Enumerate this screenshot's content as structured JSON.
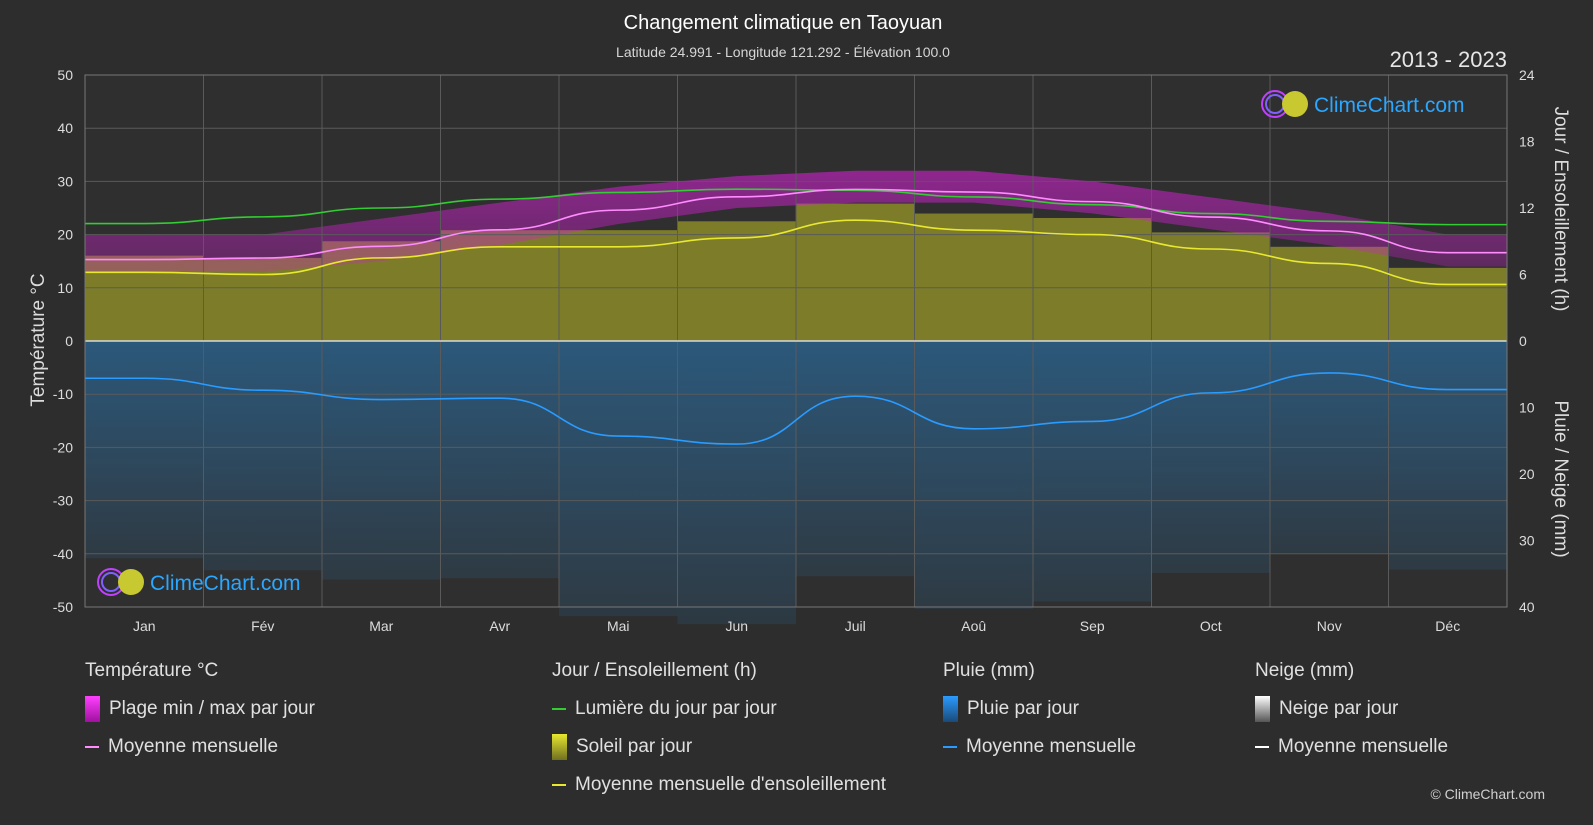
{
  "header": {
    "title": "Changement climatique en Taoyuan",
    "subtitle": "Latitude 24.991 - Longitude 121.292 - Élévation 100.0",
    "years": "2013 - 2023"
  },
  "brand": {
    "logo_text": "ClimeChart.com",
    "copyright": "© ClimeChart.com"
  },
  "colors": {
    "background": "#2d2d2d",
    "temp_range": "#d020d0",
    "temp_mean": "#ff8cff",
    "daylight": "#33cc33",
    "sunshine": "#b8b830",
    "sunshine_mean": "#e8e830",
    "rain": "#2a7ab8",
    "rain_mean": "#2a9bff",
    "snow_mean": "#ffffff",
    "logo": "#2aa7ff"
  },
  "chart_data": {
    "type": "area",
    "x_categories": [
      "Jan",
      "Fév",
      "Mar",
      "Avr",
      "Mai",
      "Jun",
      "Juil",
      "Aoû",
      "Sep",
      "Oct",
      "Nov",
      "Déc"
    ],
    "axes": {
      "left": {
        "label": "Température °C",
        "range": [
          -50,
          50
        ],
        "ticks": [
          50,
          40,
          30,
          20,
          10,
          0,
          -10,
          -20,
          -30,
          -40,
          -50
        ]
      },
      "right_top": {
        "label": "Jour / Ensoleillement (h)",
        "range": [
          0,
          24
        ],
        "ticks": [
          24,
          18,
          12,
          6,
          0
        ]
      },
      "right_bottom": {
        "label": "Pluie / Neige (mm)",
        "range": [
          0,
          40
        ],
        "ticks": [
          0,
          10,
          20,
          30,
          40
        ]
      }
    },
    "grid": true,
    "series": [
      {
        "name": "Plage min / max par jour",
        "axis": "left",
        "min": [
          13,
          13,
          15,
          18,
          22,
          25,
          26,
          26,
          24,
          21,
          18,
          14
        ],
        "max": [
          20,
          20,
          23,
          26,
          29,
          31,
          32,
          32,
          30,
          27,
          24,
          20
        ]
      },
      {
        "name": "Moyenne mensuelle",
        "group": "Température °C",
        "axis": "left",
        "values": [
          15.3,
          15.6,
          17.8,
          20.9,
          24.6,
          27.1,
          28.5,
          28.0,
          26.2,
          23.3,
          20.7,
          16.6
        ]
      },
      {
        "name": "Lumière du jour par jour",
        "axis": "right_top",
        "values": [
          10.6,
          11.2,
          12.0,
          12.8,
          13.4,
          13.7,
          13.6,
          13.0,
          12.3,
          11.5,
          10.8,
          10.5
        ]
      },
      {
        "name": "Soleil par jour",
        "axis": "right_top",
        "values": [
          6.2,
          6.0,
          7.5,
          8.5,
          8.5,
          9.3,
          10.9,
          10.0,
          9.6,
          8.3,
          7.0,
          5.1
        ]
      },
      {
        "name": "Moyenne mensuelle d'ensoleillement",
        "axis": "right_top",
        "values": [
          6.2,
          6.0,
          7.5,
          8.5,
          8.5,
          9.3,
          10.9,
          10.0,
          9.6,
          8.3,
          7.0,
          5.1
        ]
      },
      {
        "name": "Pluie par jour",
        "axis": "right_bottom",
        "values": [
          5.6,
          7.4,
          8.8,
          8.6,
          14.3,
          15.5,
          8.3,
          13.2,
          12.1,
          7.8,
          4.8,
          7.3
        ]
      },
      {
        "name": "Moyenne mensuelle",
        "group": "Pluie (mm)",
        "axis": "right_bottom",
        "values": [
          5.6,
          7.4,
          8.8,
          8.6,
          14.3,
          15.5,
          8.3,
          13.2,
          12.1,
          7.8,
          4.8,
          7.3
        ]
      },
      {
        "name": "Neige par jour",
        "axis": "right_bottom",
        "values": [
          0,
          0,
          0,
          0,
          0,
          0,
          0,
          0,
          0,
          0,
          0,
          0
        ]
      },
      {
        "name": "Moyenne mensuelle",
        "group": "Neige (mm)",
        "axis": "right_bottom",
        "values": [
          0,
          0,
          0,
          0,
          0,
          0,
          0,
          0,
          0,
          0,
          0,
          0
        ]
      }
    ]
  },
  "legend": {
    "temperature": {
      "title": "Température °C",
      "items": [
        "Plage min / max par jour",
        "Moyenne mensuelle"
      ]
    },
    "sunshine": {
      "title": "Jour / Ensoleillement (h)",
      "items": [
        "Lumière du jour par jour",
        "Soleil par jour",
        "Moyenne mensuelle d'ensoleillement"
      ]
    },
    "rain": {
      "title": "Pluie (mm)",
      "items": [
        "Pluie par jour",
        "Moyenne mensuelle"
      ]
    },
    "snow": {
      "title": "Neige (mm)",
      "items": [
        "Neige par jour",
        "Moyenne mensuelle"
      ]
    }
  }
}
